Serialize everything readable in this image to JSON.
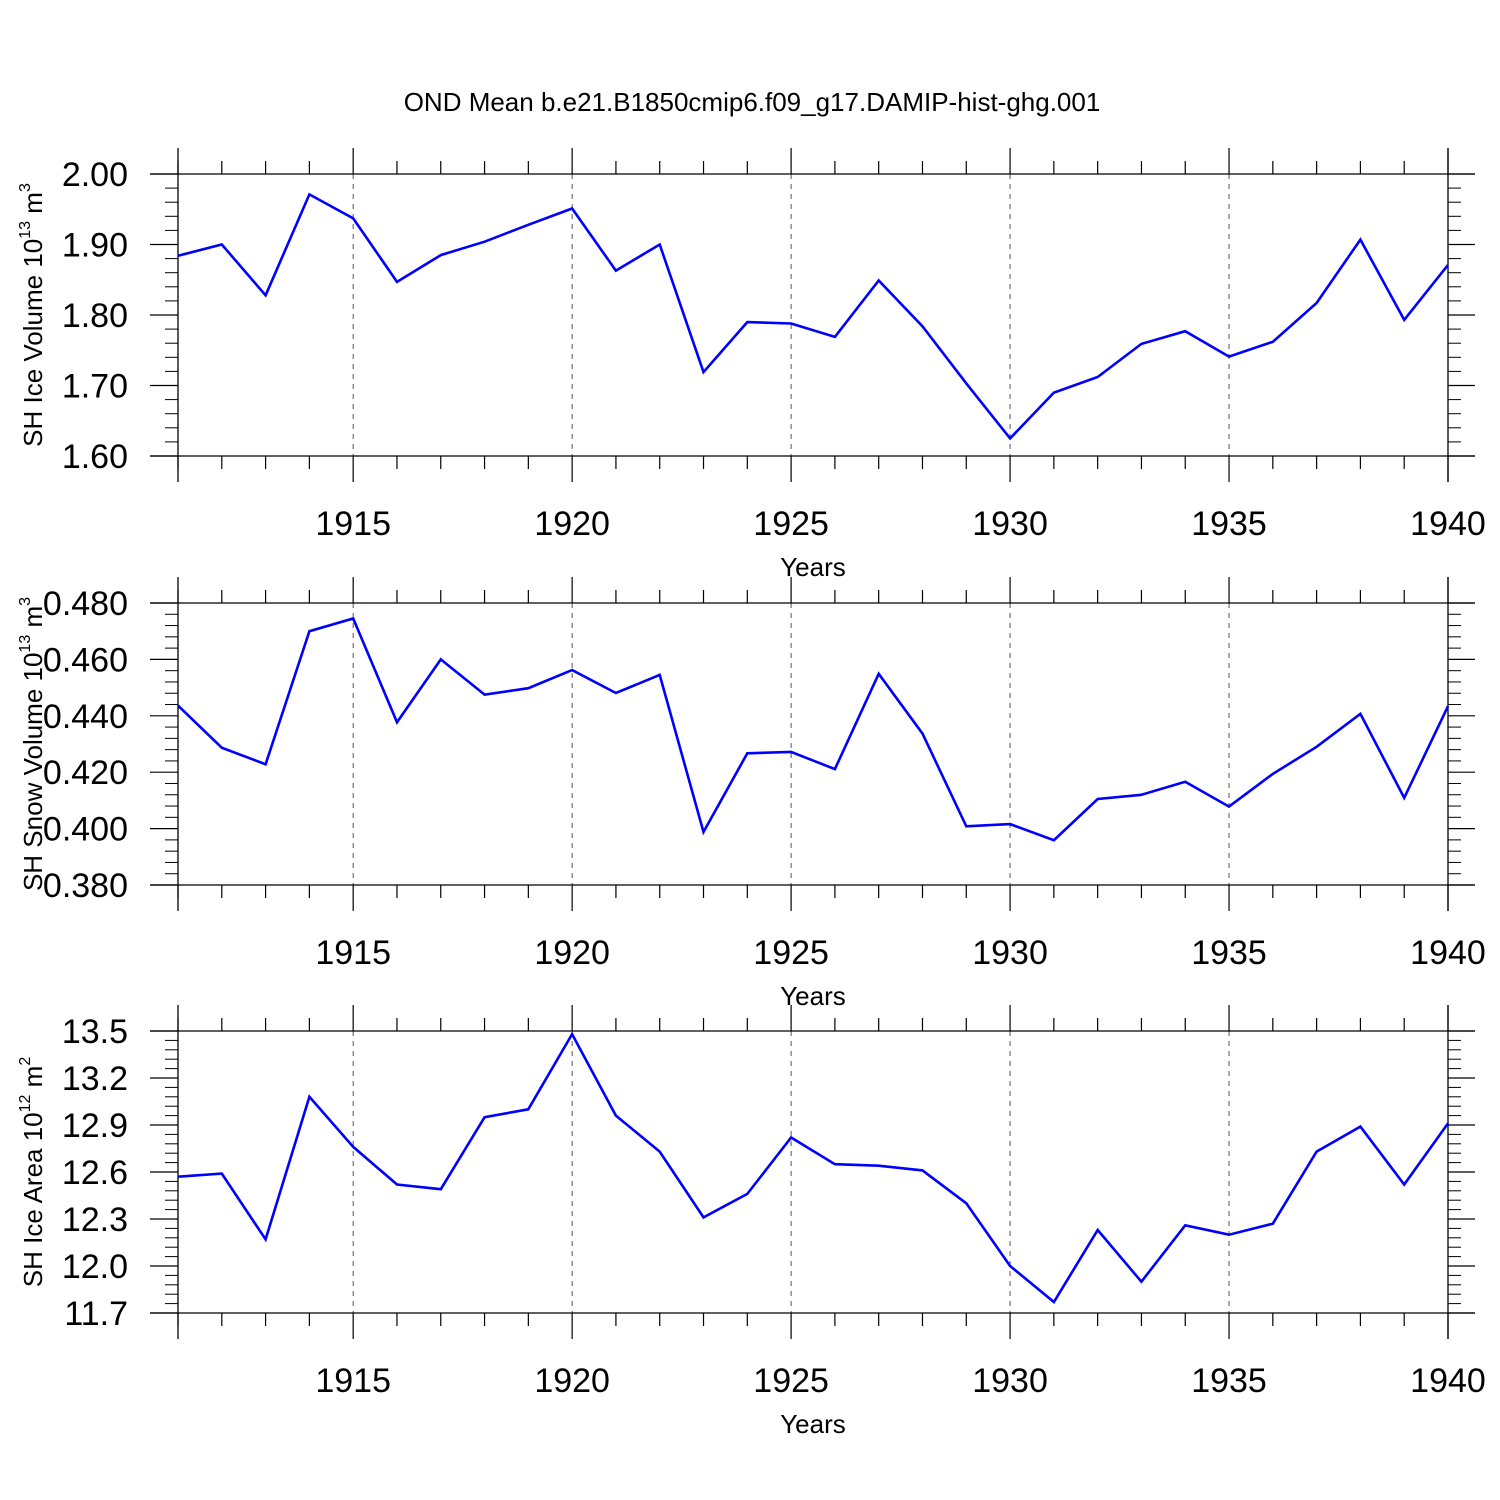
{
  "title": "OND Mean b.e21.B1850cmip6.f09_g17.DAMIP-hist-ghg.001",
  "colors": {
    "line": "#0000ff",
    "axis": "#000000",
    "grid": "#555555"
  },
  "chart_data": [
    {
      "type": "line",
      "ylabel": {
        "main": "SH Ice Volume 10",
        "exp": "13",
        "unit": " m",
        "unit_exp": "3"
      },
      "xlabel": "Years",
      "xlim": [
        1911,
        1940
      ],
      "ylim": [
        1.6,
        2.0
      ],
      "x_ticks": [
        "1915",
        "1920",
        "1925",
        "1930",
        "1935",
        "1940"
      ],
      "y_ticks": [
        "1.60",
        "1.70",
        "1.80",
        "1.90",
        "2.00"
      ],
      "grid": "vertical dashed at major x ticks",
      "series": [
        {
          "x": [
            1911,
            1912,
            1913,
            1914,
            1915,
            1916,
            1917,
            1918,
            1919,
            1920,
            1921,
            1922,
            1923,
            1924,
            1925,
            1926,
            1927,
            1928,
            1929,
            1930,
            1931,
            1932,
            1933,
            1934,
            1935,
            1936,
            1937,
            1938,
            1939,
            1940
          ],
          "values": [
            1.884,
            1.9,
            1.828,
            1.971,
            1.937,
            1.847,
            1.885,
            1.904,
            1.928,
            1.951,
            1.863,
            1.9,
            1.719,
            1.79,
            1.788,
            1.769,
            1.849,
            1.784,
            1.703,
            1.625,
            1.69,
            1.712,
            1.759,
            1.777,
            1.741,
            1.762,
            1.817,
            1.907,
            1.793,
            1.871
          ]
        }
      ]
    },
    {
      "type": "line",
      "ylabel": {
        "main": "SH Snow Volume 10",
        "exp": "13",
        "unit": " m",
        "unit_exp": "3"
      },
      "xlabel": "Years",
      "xlim": [
        1911,
        1940
      ],
      "ylim": [
        0.38,
        0.48
      ],
      "x_ticks": [
        "1915",
        "1920",
        "1925",
        "1930",
        "1935",
        "1940"
      ],
      "y_ticks": [
        "0.380",
        "0.400",
        "0.420",
        "0.440",
        "0.460",
        "0.480"
      ],
      "grid": "vertical dashed at major x ticks",
      "series": [
        {
          "x": [
            1911,
            1912,
            1913,
            1914,
            1915,
            1916,
            1917,
            1918,
            1919,
            1920,
            1921,
            1922,
            1923,
            1924,
            1925,
            1926,
            1927,
            1928,
            1929,
            1930,
            1931,
            1932,
            1933,
            1934,
            1935,
            1936,
            1937,
            1938,
            1939,
            1940
          ],
          "values": [
            0.4436,
            0.4287,
            0.4228,
            0.47,
            0.4745,
            0.4377,
            0.46,
            0.4475,
            0.4498,
            0.4562,
            0.4481,
            0.4545,
            0.3988,
            0.4267,
            0.4272,
            0.4211,
            0.4549,
            0.4337,
            0.4008,
            0.4016,
            0.3959,
            0.4105,
            0.412,
            0.4166,
            0.4078,
            0.4194,
            0.429,
            0.4407,
            0.4109,
            0.4434
          ]
        }
      ]
    },
    {
      "type": "line",
      "ylabel": {
        "main": "SH Ice Area 10",
        "exp": "12",
        "unit": " m",
        "unit_exp": "2"
      },
      "xlabel": "Years",
      "xlim": [
        1911,
        1940
      ],
      "ylim": [
        11.7,
        13.5
      ],
      "x_ticks": [
        "1915",
        "1920",
        "1925",
        "1930",
        "1935",
        "1940"
      ],
      "y_ticks": [
        "11.7",
        "12.0",
        "12.3",
        "12.6",
        "12.9",
        "13.2",
        "13.5"
      ],
      "grid": "vertical dashed at major x ticks",
      "series": [
        {
          "x": [
            1911,
            1912,
            1913,
            1914,
            1915,
            1916,
            1917,
            1918,
            1919,
            1920,
            1921,
            1922,
            1923,
            1924,
            1925,
            1926,
            1927,
            1928,
            1929,
            1930,
            1931,
            1932,
            1933,
            1934,
            1935,
            1936,
            1937,
            1938,
            1939,
            1940
          ],
          "values": [
            12.57,
            12.59,
            12.17,
            13.08,
            12.76,
            12.52,
            12.49,
            12.95,
            13.0,
            13.48,
            12.96,
            12.73,
            12.31,
            12.46,
            12.82,
            12.65,
            12.64,
            12.61,
            12.4,
            12.0,
            11.77,
            12.23,
            11.9,
            12.26,
            12.2,
            12.27,
            12.73,
            12.89,
            12.52,
            12.91
          ]
        }
      ]
    }
  ]
}
